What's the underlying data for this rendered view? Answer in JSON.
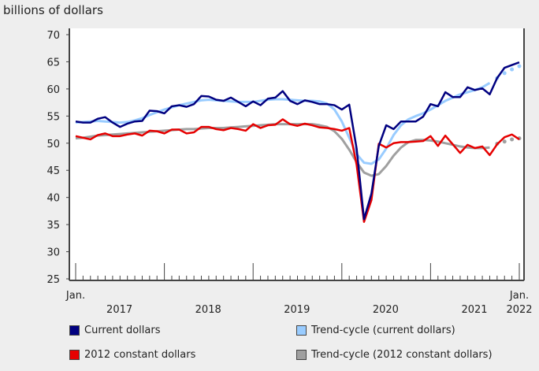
{
  "chart_data": {
    "type": "line",
    "ylabel": "billions of dollars",
    "ylim": [
      25,
      70
    ],
    "yticks": [
      25,
      30,
      35,
      40,
      45,
      50,
      55,
      60,
      65,
      70
    ],
    "x_start": "2017-01",
    "x_end": "2022-01",
    "x_tick_labels": {
      "start": "Jan.",
      "end": "Jan.",
      "years": [
        "2017",
        "2018",
        "2019",
        "2020",
        "2021",
        "2022"
      ]
    },
    "grid": false,
    "legend_placement": "bottom",
    "series": [
      {
        "name": "Current dollars",
        "color": "#000080",
        "style": "solid",
        "values": [
          54.0,
          53.8,
          53.8,
          54.5,
          54.8,
          53.8,
          53.0,
          53.6,
          54.0,
          54.1,
          56.0,
          55.9,
          55.5,
          56.8,
          57.0,
          56.7,
          57.2,
          58.7,
          58.6,
          58.0,
          57.8,
          58.4,
          57.6,
          56.8,
          57.7,
          57.0,
          58.2,
          58.4,
          59.6,
          57.8,
          57.2,
          57.9,
          57.6,
          57.2,
          57.2,
          57.0,
          56.2,
          57.1,
          49.0,
          36.0,
          40.7,
          49.5,
          53.3,
          52.6,
          54.0,
          54.0,
          54.0,
          54.9,
          57.2,
          56.8,
          59.4,
          58.5,
          58.5,
          60.3,
          59.8,
          60.1,
          59.0,
          62.0,
          63.9,
          64.4,
          64.9
        ]
      },
      {
        "name": "Trend-cycle (current dollars)",
        "color": "#99ccff",
        "style": "solid",
        "dotted_from_index": 56,
        "values": [
          53.8,
          53.9,
          54.0,
          54.1,
          54.0,
          53.9,
          53.8,
          53.9,
          54.2,
          54.6,
          55.2,
          55.7,
          56.2,
          56.6,
          57.0,
          57.3,
          57.6,
          57.9,
          58.0,
          57.9,
          57.8,
          57.7,
          57.6,
          57.6,
          57.6,
          57.8,
          58.0,
          58.1,
          58.1,
          58.0,
          57.9,
          57.8,
          57.8,
          57.7,
          57.3,
          56.2,
          54.0,
          51.0,
          48.0,
          46.4,
          46.2,
          47.0,
          49.0,
          51.5,
          53.3,
          54.4,
          55.0,
          55.5,
          56.2,
          57.0,
          57.8,
          58.4,
          59.0,
          59.4,
          59.8,
          60.3,
          61.1,
          62.0,
          62.9,
          63.6,
          64.2
        ]
      },
      {
        "name": "2012 constant dollars",
        "color": "#e60000",
        "style": "solid",
        "values": [
          51.3,
          51.0,
          50.7,
          51.5,
          51.8,
          51.3,
          51.3,
          51.6,
          51.8,
          51.4,
          52.3,
          52.2,
          51.8,
          52.5,
          52.5,
          51.8,
          52.0,
          53.0,
          53.0,
          52.6,
          52.4,
          52.8,
          52.6,
          52.3,
          53.5,
          52.8,
          53.3,
          53.4,
          54.4,
          53.5,
          53.2,
          53.6,
          53.3,
          52.9,
          52.8,
          52.6,
          52.3,
          52.8,
          46.0,
          35.5,
          39.5,
          49.9,
          49.2,
          50.0,
          50.2,
          50.2,
          50.3,
          50.4,
          51.3,
          49.5,
          51.4,
          49.8,
          48.2,
          49.7,
          49.1,
          49.4,
          47.8,
          49.8,
          51.1,
          51.6,
          50.7
        ]
      },
      {
        "name": "Trend-cycle (2012 constant dollars)",
        "color": "#a0a0a0",
        "style": "solid",
        "dotted_from_index": 56,
        "values": [
          50.9,
          51.0,
          51.2,
          51.4,
          51.5,
          51.6,
          51.7,
          51.8,
          51.9,
          52.0,
          52.1,
          52.2,
          52.3,
          52.4,
          52.5,
          52.6,
          52.6,
          52.7,
          52.8,
          52.8,
          52.8,
          52.9,
          53.0,
          53.1,
          53.2,
          53.3,
          53.4,
          53.5,
          53.5,
          53.5,
          53.5,
          53.5,
          53.5,
          53.3,
          53.0,
          52.2,
          50.8,
          48.8,
          46.5,
          44.6,
          44.0,
          44.3,
          45.8,
          47.7,
          49.2,
          50.2,
          50.6,
          50.6,
          50.5,
          50.3,
          50.0,
          49.7,
          49.4,
          49.2,
          49.1,
          49.1,
          49.2,
          49.9,
          50.3,
          50.7,
          50.9
        ]
      }
    ]
  }
}
